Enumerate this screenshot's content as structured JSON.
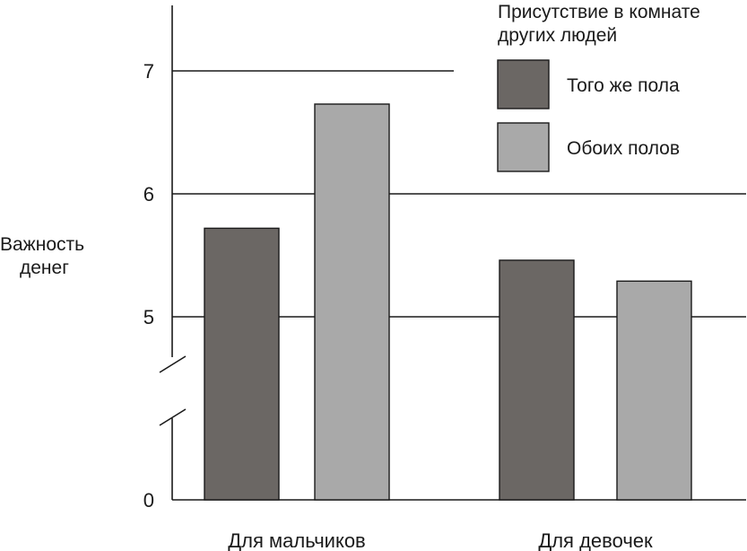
{
  "chart_data": {
    "type": "bar",
    "ylabel": [
      "Важность",
      "денег"
    ],
    "categories": [
      "Для мальчиков",
      "Для девочек"
    ],
    "series": [
      {
        "name": "Того же пола",
        "values": [
          5.72,
          5.46
        ],
        "color": "#6b6764"
      },
      {
        "name": "Обоих полов",
        "values": [
          6.73,
          5.29
        ],
        "color": "#a9a9a9"
      }
    ],
    "legend": {
      "title": [
        "Присутствие в комнате",
        "других людей"
      ],
      "placement": "top-right"
    },
    "y_ticks": [
      {
        "value": 0,
        "label": "0"
      },
      {
        "value": 5,
        "label": "5"
      },
      {
        "value": 6,
        "label": "6"
      },
      {
        "value": 7,
        "label": "7"
      }
    ],
    "y_axis_break": [
      0,
      4.5
    ],
    "ylim": [
      0,
      7.5
    ],
    "grid": true
  }
}
